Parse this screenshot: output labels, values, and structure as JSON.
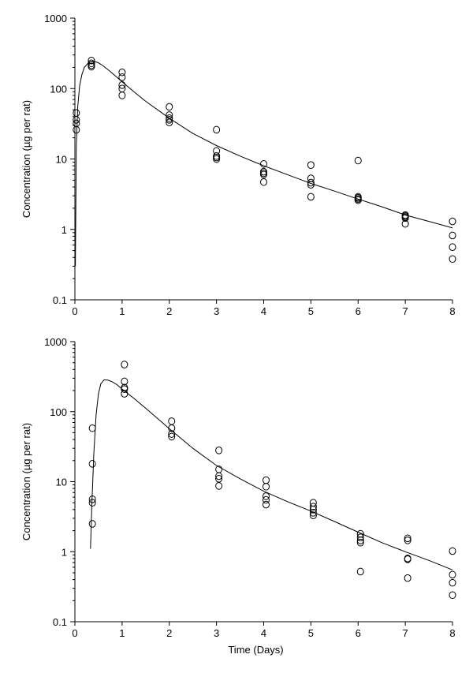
{
  "chart_data": [
    {
      "type": "scatter",
      "title": "",
      "xlabel": "",
      "ylabel": "Concentration  (µg per rat)",
      "yscale": "log",
      "xlim": [
        0,
        8
      ],
      "ylim": [
        0.1,
        1000
      ],
      "x_ticks": [
        0,
        1,
        2,
        3,
        4,
        5,
        6,
        7,
        8
      ],
      "y_ticks": [
        0.1,
        1,
        10,
        100,
        1000
      ],
      "x_tick_labels": [
        "0",
        "1",
        "2",
        "3",
        "4",
        "5",
        "6",
        "7",
        "8"
      ],
      "y_tick_labels": [
        "0.1",
        "1",
        "10",
        "100",
        "1000"
      ],
      "grid": false,
      "series": [
        {
          "kind": "points",
          "marker": "open-circle",
          "points": [
            [
              0.03,
              45
            ],
            [
              0.03,
              36
            ],
            [
              0.03,
              32
            ],
            [
              0.03,
              26
            ],
            [
              0.35,
              250
            ],
            [
              0.35,
              228
            ],
            [
              0.35,
              215
            ],
            [
              0.35,
              205
            ],
            [
              1.0,
              170
            ],
            [
              1.0,
              145
            ],
            [
              1.0,
              112
            ],
            [
              1.0,
              100
            ],
            [
              1.0,
              80
            ],
            [
              2.0,
              55
            ],
            [
              2.0,
              42
            ],
            [
              2.0,
              38
            ],
            [
              2.0,
              36
            ],
            [
              2.0,
              33
            ],
            [
              3.0,
              26
            ],
            [
              3.0,
              13
            ],
            [
              3.0,
              11
            ],
            [
              3.0,
              10.5
            ],
            [
              3.0,
              10
            ],
            [
              4.0,
              8.5
            ],
            [
              4.0,
              6.6
            ],
            [
              4.0,
              6.3
            ],
            [
              4.0,
              6.0
            ],
            [
              4.0,
              4.7
            ],
            [
              5.0,
              8.2
            ],
            [
              5.0,
              5.3
            ],
            [
              5.0,
              4.6
            ],
            [
              5.0,
              4.3
            ],
            [
              5.0,
              2.9
            ],
            [
              6.0,
              9.5
            ],
            [
              6.0,
              2.9
            ],
            [
              6.0,
              2.8
            ],
            [
              6.0,
              2.7
            ],
            [
              6.0,
              2.6
            ],
            [
              7.0,
              1.6
            ],
            [
              7.0,
              1.55
            ],
            [
              7.0,
              1.5
            ],
            [
              7.0,
              1.45
            ],
            [
              7.0,
              1.2
            ],
            [
              8.0,
              1.3
            ],
            [
              8.0,
              0.82
            ],
            [
              8.0,
              0.56
            ],
            [
              8.0,
              0.38
            ]
          ]
        },
        {
          "kind": "fit-curve",
          "points": [
            [
              0.01,
              0.3
            ],
            [
              0.03,
              15
            ],
            [
              0.06,
              55
            ],
            [
              0.1,
              110
            ],
            [
              0.15,
              160
            ],
            [
              0.2,
              200
            ],
            [
              0.3,
              238
            ],
            [
              0.4,
              245
            ],
            [
              0.5,
              232
            ],
            [
              0.6,
              210
            ],
            [
              0.75,
              175
            ],
            [
              1.0,
              125
            ],
            [
              1.25,
              90
            ],
            [
              1.5,
              66
            ],
            [
              2.0,
              38
            ],
            [
              2.5,
              23
            ],
            [
              3.0,
              15.5
            ],
            [
              3.5,
              11
            ],
            [
              4.0,
              8
            ],
            [
              4.5,
              6
            ],
            [
              5.0,
              4.5
            ],
            [
              5.5,
              3.5
            ],
            [
              6.0,
              2.7
            ],
            [
              6.5,
              2.1
            ],
            [
              7.0,
              1.6
            ],
            [
              7.5,
              1.3
            ],
            [
              8.0,
              1.05
            ]
          ]
        }
      ]
    },
    {
      "type": "scatter",
      "title": "",
      "xlabel": "Time  (Days)",
      "ylabel": "Concentration  (µg per rat)",
      "yscale": "log",
      "xlim": [
        0,
        8
      ],
      "ylim": [
        0.1,
        1000
      ],
      "x_ticks": [
        0,
        1,
        2,
        3,
        4,
        5,
        6,
        7,
        8
      ],
      "y_ticks": [
        0.1,
        1,
        10,
        100,
        1000
      ],
      "x_tick_labels": [
        "0",
        "1",
        "2",
        "3",
        "4",
        "5",
        "6",
        "7",
        "8"
      ],
      "y_tick_labels": [
        "0.1",
        "1",
        "10",
        "100",
        "1000"
      ],
      "grid": false,
      "series": [
        {
          "kind": "points",
          "marker": "open-circle",
          "points": [
            [
              0.37,
              58
            ],
            [
              0.37,
              18
            ],
            [
              0.37,
              5.6
            ],
            [
              0.37,
              5.0
            ],
            [
              0.37,
              2.5
            ],
            [
              1.05,
              470
            ],
            [
              1.05,
              270
            ],
            [
              1.05,
              220
            ],
            [
              1.05,
              210
            ],
            [
              1.05,
              180
            ],
            [
              2.05,
              73
            ],
            [
              2.05,
              58
            ],
            [
              2.05,
              48
            ],
            [
              2.05,
              44
            ],
            [
              3.05,
              28
            ],
            [
              3.05,
              15
            ],
            [
              3.05,
              12
            ],
            [
              3.05,
              11
            ],
            [
              3.05,
              8.7
            ],
            [
              4.05,
              10.5
            ],
            [
              4.05,
              8.5
            ],
            [
              4.05,
              6.2
            ],
            [
              4.05,
              5.5
            ],
            [
              4.05,
              4.7
            ],
            [
              5.05,
              5.0
            ],
            [
              5.05,
              4.4
            ],
            [
              5.05,
              4.0
            ],
            [
              5.05,
              3.6
            ],
            [
              5.05,
              3.3
            ],
            [
              6.05,
              1.8
            ],
            [
              6.05,
              1.6
            ],
            [
              6.05,
              1.45
            ],
            [
              6.05,
              1.35
            ],
            [
              6.05,
              0.52
            ],
            [
              7.05,
              1.55
            ],
            [
              7.05,
              1.45
            ],
            [
              7.05,
              0.8
            ],
            [
              7.05,
              0.78
            ],
            [
              7.05,
              0.42
            ],
            [
              8.0,
              1.02
            ],
            [
              8.0,
              0.47
            ],
            [
              8.0,
              0.36
            ],
            [
              8.0,
              0.24
            ]
          ]
        },
        {
          "kind": "fit-curve",
          "points": [
            [
              0.33,
              1.1
            ],
            [
              0.36,
              5
            ],
            [
              0.4,
              25
            ],
            [
              0.45,
              90
            ],
            [
              0.5,
              180
            ],
            [
              0.55,
              250
            ],
            [
              0.62,
              285
            ],
            [
              0.7,
              282
            ],
            [
              0.8,
              265
            ],
            [
              0.9,
              240
            ],
            [
              1.0,
              210
            ],
            [
              1.25,
              155
            ],
            [
              1.5,
              112
            ],
            [
              2.0,
              57
            ],
            [
              2.5,
              30
            ],
            [
              3.0,
              17
            ],
            [
              3.5,
              11
            ],
            [
              4.0,
              7.3
            ],
            [
              4.5,
              5.2
            ],
            [
              5.0,
              3.8
            ],
            [
              5.5,
              2.7
            ],
            [
              6.0,
              1.9
            ],
            [
              6.5,
              1.35
            ],
            [
              7.0,
              1.0
            ],
            [
              7.5,
              0.75
            ],
            [
              8.0,
              0.55
            ]
          ]
        }
      ]
    }
  ]
}
